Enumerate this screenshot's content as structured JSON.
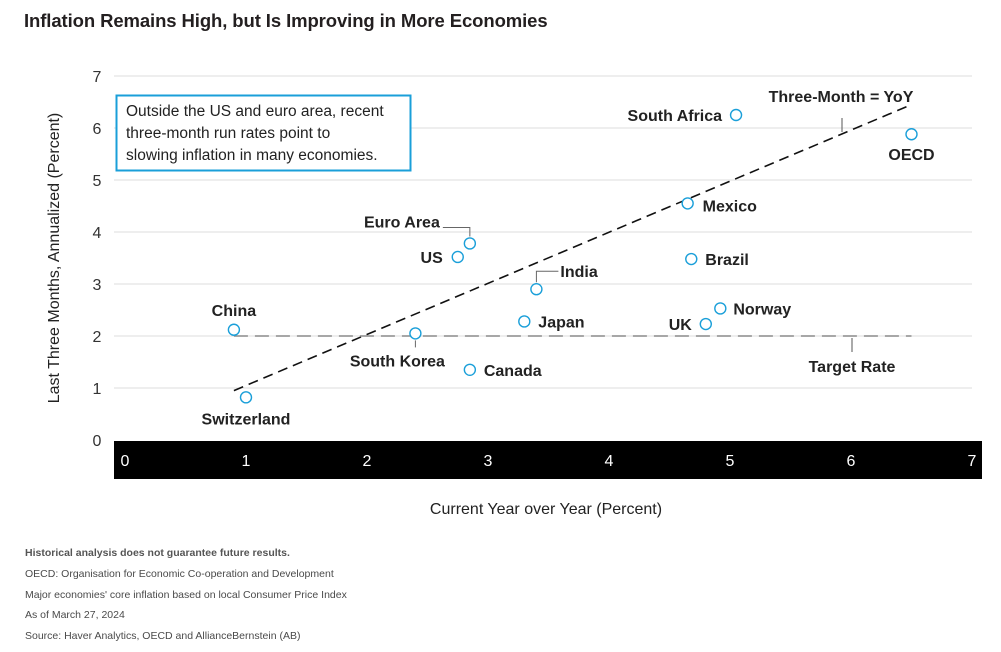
{
  "title": "Inflation Remains High, but Is Improving in More Economies",
  "colors": {
    "marker": "#1a9fd9",
    "callout_border": "#1a9fd9",
    "axis_band": "#000000",
    "grid": "#dedede"
  },
  "callout": {
    "lines": [
      "Outside the US and euro area, recent",
      "three-month run rates point to",
      "slowing inflation in many economies."
    ]
  },
  "chart_data": {
    "type": "scatter",
    "title": "Inflation Remains High, but Is Improving in More Economies",
    "xlabel": "Current Year over Year (Percent)",
    "ylabel": "Last Three Months, Annualized (Percent)",
    "xlim": [
      0,
      7
    ],
    "ylim": [
      0,
      7
    ],
    "xticks": [
      "0",
      "1",
      "2",
      "3",
      "4",
      "5",
      "6",
      "7"
    ],
    "yticks": [
      "0",
      "1",
      "2",
      "3",
      "4",
      "5",
      "6",
      "7"
    ],
    "grid": true,
    "points": [
      {
        "label": "South Africa",
        "x": 5.05,
        "y": 6.25
      },
      {
        "label": "OECD",
        "x": 6.5,
        "y": 5.88
      },
      {
        "label": "Mexico",
        "x": 4.65,
        "y": 4.55
      },
      {
        "label": "Euro Area",
        "x": 2.85,
        "y": 3.78
      },
      {
        "label": "US",
        "x": 2.75,
        "y": 3.52
      },
      {
        "label": "Brazil",
        "x": 4.68,
        "y": 3.48
      },
      {
        "label": "India",
        "x": 3.4,
        "y": 2.9
      },
      {
        "label": "Norway",
        "x": 4.92,
        "y": 2.53
      },
      {
        "label": "Japan",
        "x": 3.3,
        "y": 2.28
      },
      {
        "label": "UK",
        "x": 4.8,
        "y": 2.23
      },
      {
        "label": "China",
        "x": 0.9,
        "y": 2.12
      },
      {
        "label": "South Korea",
        "x": 2.4,
        "y": 2.05
      },
      {
        "label": "Canada",
        "x": 2.85,
        "y": 1.35
      },
      {
        "label": "Switzerland",
        "x": 1.0,
        "y": 0.82
      }
    ],
    "reference_lines": [
      {
        "label": "Three-Month = YoY",
        "style": "dashed",
        "x": [
          0.9,
          6.5
        ],
        "y": [
          0.95,
          6.45
        ]
      },
      {
        "label": "Target Rate",
        "style": "dashed",
        "x": [
          0.9,
          6.5
        ],
        "y": [
          2.0,
          2.0
        ]
      }
    ]
  },
  "footnotes": [
    "Historical analysis does not guarantee future results.",
    "OECD: Organisation for Economic Co-operation and Development",
    "Major economies' core inflation based on local Consumer Price Index",
    "As of March 27, 2024",
    "Source: Haver Analytics, OECD and AllianceBernstein (AB)"
  ]
}
